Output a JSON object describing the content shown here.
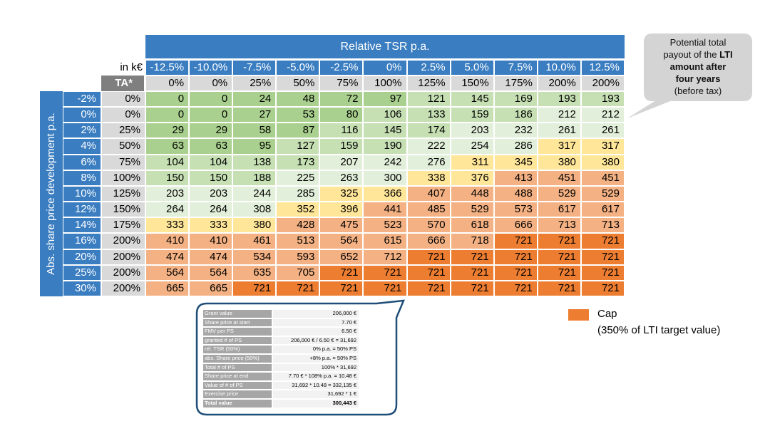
{
  "table": {
    "title": "Relative TSR p.a.",
    "unit_label": "in k€",
    "ta_label": "TA*",
    "row_axis_label": "Abs. share price development p.a.",
    "column_labels": [
      "-12.5%",
      "-10.0%",
      "-7.5%",
      "-5.0%",
      "-2.5%",
      "0%",
      "2.5%",
      "5.0%",
      "7.5%",
      "10.0%",
      "12.5%"
    ],
    "column_ta": [
      "0%",
      "0%",
      "25%",
      "50%",
      "75%",
      "100%",
      "125%",
      "150%",
      "175%",
      "200%",
      "200%"
    ],
    "rows": [
      {
        "label": "-2%",
        "ta": "0%",
        "values": [
          0,
          0,
          24,
          48,
          72,
          97,
          121,
          145,
          169,
          193,
          193
        ]
      },
      {
        "label": "0%",
        "ta": "0%",
        "values": [
          0,
          0,
          27,
          53,
          80,
          106,
          133,
          159,
          186,
          212,
          212
        ]
      },
      {
        "label": "2%",
        "ta": "25%",
        "values": [
          29,
          29,
          58,
          87,
          116,
          145,
          174,
          203,
          232,
          261,
          261
        ]
      },
      {
        "label": "4%",
        "ta": "50%",
        "values": [
          63,
          63,
          95,
          127,
          159,
          190,
          222,
          254,
          286,
          317,
          317
        ]
      },
      {
        "label": "6%",
        "ta": "75%",
        "values": [
          104,
          104,
          138,
          173,
          207,
          242,
          276,
          311,
          345,
          380,
          380
        ]
      },
      {
        "label": "8%",
        "ta": "100%",
        "values": [
          150,
          150,
          188,
          225,
          263,
          300,
          338,
          376,
          413,
          451,
          451
        ]
      },
      {
        "label": "10%",
        "ta": "125%",
        "values": [
          203,
          203,
          244,
          285,
          325,
          366,
          407,
          448,
          488,
          529,
          529
        ]
      },
      {
        "label": "12%",
        "ta": "150%",
        "values": [
          264,
          264,
          308,
          352,
          396,
          441,
          485,
          529,
          573,
          617,
          617
        ]
      },
      {
        "label": "14%",
        "ta": "175%",
        "values": [
          333,
          333,
          380,
          428,
          475,
          523,
          570,
          618,
          666,
          713,
          713
        ]
      },
      {
        "label": "16%",
        "ta": "200%",
        "values": [
          410,
          410,
          461,
          513,
          564,
          615,
          666,
          718,
          721,
          721,
          721
        ]
      },
      {
        "label": "20%",
        "ta": "200%",
        "values": [
          474,
          474,
          534,
          593,
          652,
          712,
          721,
          721,
          721,
          721,
          721
        ]
      },
      {
        "label": "25%",
        "ta": "200%",
        "values": [
          564,
          564,
          635,
          705,
          721,
          721,
          721,
          721,
          721,
          721,
          721
        ]
      },
      {
        "label": "30%",
        "ta": "200%",
        "values": [
          665,
          665,
          721,
          721,
          721,
          721,
          721,
          721,
          721,
          721,
          721
        ]
      }
    ]
  },
  "callout": {
    "lines": [
      {
        "text": "Potential total"
      },
      {
        "text": "payout of the ",
        "bold": "LTI"
      },
      {
        "bold": "amount after"
      },
      {
        "bold": "four years"
      },
      {
        "text": "(before tax)"
      }
    ]
  },
  "detail_table": {
    "rows": [
      [
        "Grant value",
        "206,000 €"
      ],
      [
        "Share price at start",
        "7.70 €"
      ],
      [
        "FMV per PS",
        "6.50 €"
      ],
      [
        "granted # of PS",
        "206,000 € / 6.50 € = 31,692"
      ],
      [
        "rel. TSR (50%)",
        "0% p.a. = 50% PS"
      ],
      [
        "abs. Share price (50%)",
        "+8% p.a. = 50% PS"
      ],
      [
        "Total # of PS",
        "100% * 31,692"
      ],
      [
        "Share price at end",
        "7.70 € * 108% p.a. = 10.48 €"
      ],
      [
        "Value of # of PS",
        "31,692 * 10.48 = 332,135 €"
      ],
      [
        "Exercise price",
        "31,692 * 1 €"
      ],
      [
        "Total value",
        "300,443 €"
      ]
    ]
  },
  "legend": {
    "label": "Cap",
    "note": "(350% of LTI target value)"
  }
}
